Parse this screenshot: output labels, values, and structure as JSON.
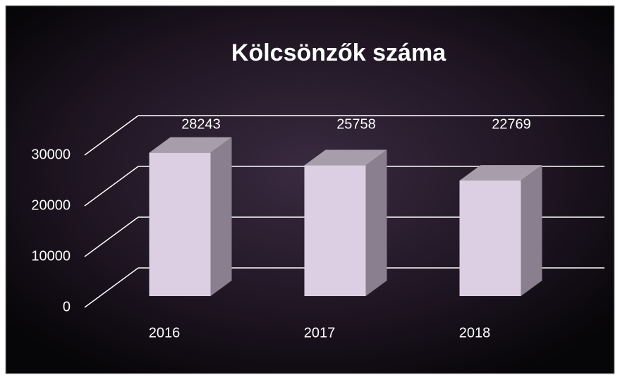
{
  "chart_data": {
    "type": "bar3d",
    "title": "Kölcsönzők száma",
    "categories": [
      "2016",
      "2017",
      "2018"
    ],
    "values": [
      28243,
      25758,
      22769
    ],
    "color": "#dccfe3",
    "ylim": [
      0,
      30000
    ],
    "yticks": [
      0,
      10000,
      20000,
      30000
    ],
    "grid": true
  }
}
